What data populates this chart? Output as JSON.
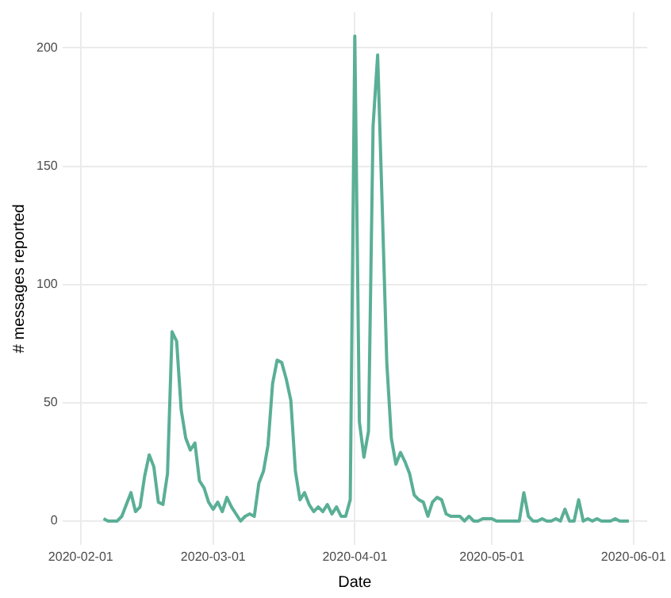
{
  "chart_data": {
    "type": "line",
    "xlabel": "Date",
    "ylabel": "# messages reported",
    "x": [
      "2020-02-06",
      "2020-02-07",
      "2020-02-08",
      "2020-02-09",
      "2020-02-10",
      "2020-02-11",
      "2020-02-12",
      "2020-02-13",
      "2020-02-14",
      "2020-02-15",
      "2020-02-16",
      "2020-02-17",
      "2020-02-18",
      "2020-02-19",
      "2020-02-20",
      "2020-02-21",
      "2020-02-22",
      "2020-02-23",
      "2020-02-24",
      "2020-02-25",
      "2020-02-26",
      "2020-02-27",
      "2020-02-28",
      "2020-02-29",
      "2020-03-01",
      "2020-03-02",
      "2020-03-03",
      "2020-03-04",
      "2020-03-05",
      "2020-03-06",
      "2020-03-07",
      "2020-03-08",
      "2020-03-09",
      "2020-03-10",
      "2020-03-11",
      "2020-03-12",
      "2020-03-13",
      "2020-03-14",
      "2020-03-15",
      "2020-03-16",
      "2020-03-17",
      "2020-03-18",
      "2020-03-19",
      "2020-03-20",
      "2020-03-21",
      "2020-03-22",
      "2020-03-23",
      "2020-03-24",
      "2020-03-25",
      "2020-03-26",
      "2020-03-27",
      "2020-03-28",
      "2020-03-29",
      "2020-03-30",
      "2020-03-31",
      "2020-04-01",
      "2020-04-02",
      "2020-04-03",
      "2020-04-04",
      "2020-04-05",
      "2020-04-06",
      "2020-04-07",
      "2020-04-08",
      "2020-04-09",
      "2020-04-10",
      "2020-04-11",
      "2020-04-12",
      "2020-04-13",
      "2020-04-14",
      "2020-04-15",
      "2020-04-16",
      "2020-04-17",
      "2020-04-18",
      "2020-04-19",
      "2020-04-20",
      "2020-04-21",
      "2020-04-22",
      "2020-04-23",
      "2020-04-24",
      "2020-04-25",
      "2020-04-26",
      "2020-04-27",
      "2020-04-28",
      "2020-04-29",
      "2020-04-30",
      "2020-05-01",
      "2020-05-02",
      "2020-05-03",
      "2020-05-04",
      "2020-05-05",
      "2020-05-06",
      "2020-05-07",
      "2020-05-08",
      "2020-05-09",
      "2020-05-10",
      "2020-05-11",
      "2020-05-12",
      "2020-05-13",
      "2020-05-14",
      "2020-05-15",
      "2020-05-16",
      "2020-05-17",
      "2020-05-18",
      "2020-05-19",
      "2020-05-20",
      "2020-05-21",
      "2020-05-22",
      "2020-05-23",
      "2020-05-24",
      "2020-05-25",
      "2020-05-26",
      "2020-05-27",
      "2020-05-28",
      "2020-05-29",
      "2020-05-30",
      "2020-05-31"
    ],
    "series": [
      {
        "color": "#5aaf96",
        "values": [
          1,
          0,
          0,
          0,
          2,
          7,
          12,
          4,
          6,
          19,
          28,
          23,
          8,
          7,
          20,
          80,
          76,
          47,
          35,
          30,
          33,
          17,
          14,
          8,
          5,
          8,
          4,
          10,
          6,
          3,
          0,
          2,
          3,
          2,
          16,
          21,
          32,
          58,
          68,
          67,
          60,
          51,
          21,
          9,
          12,
          7,
          4,
          6,
          4,
          7,
          3,
          6,
          2,
          2,
          9,
          205,
          42,
          27,
          38,
          167,
          197,
          133,
          67,
          35,
          24,
          29,
          25,
          20,
          11,
          9,
          8,
          2,
          8,
          10,
          9,
          3,
          2,
          2,
          2,
          0,
          2,
          0,
          0,
          1,
          1,
          1,
          0,
          0,
          0,
          0,
          0,
          0,
          12,
          2,
          0,
          0,
          1,
          0,
          0,
          1,
          0,
          5,
          0,
          0,
          9,
          0,
          1,
          0,
          1,
          0,
          0,
          0,
          1,
          0,
          0,
          0
        ]
      }
    ],
    "xlim": [
      "2020-01-28",
      "2020-06-04"
    ],
    "xticks": [
      {
        "value": "2020-02-01",
        "label": "2020-02-01"
      },
      {
        "value": "2020-03-01",
        "label": "2020-03-01"
      },
      {
        "value": "2020-04-01",
        "label": "2020-04-01"
      },
      {
        "value": "2020-05-01",
        "label": "2020-05-01"
      },
      {
        "value": "2020-06-01",
        "label": "2020-06-01"
      }
    ],
    "ylim": [
      -10,
      215
    ],
    "yticks": [
      0,
      50,
      100,
      150,
      200
    ],
    "grid": true,
    "legend": false,
    "marker": "none",
    "line_style": "solid"
  }
}
